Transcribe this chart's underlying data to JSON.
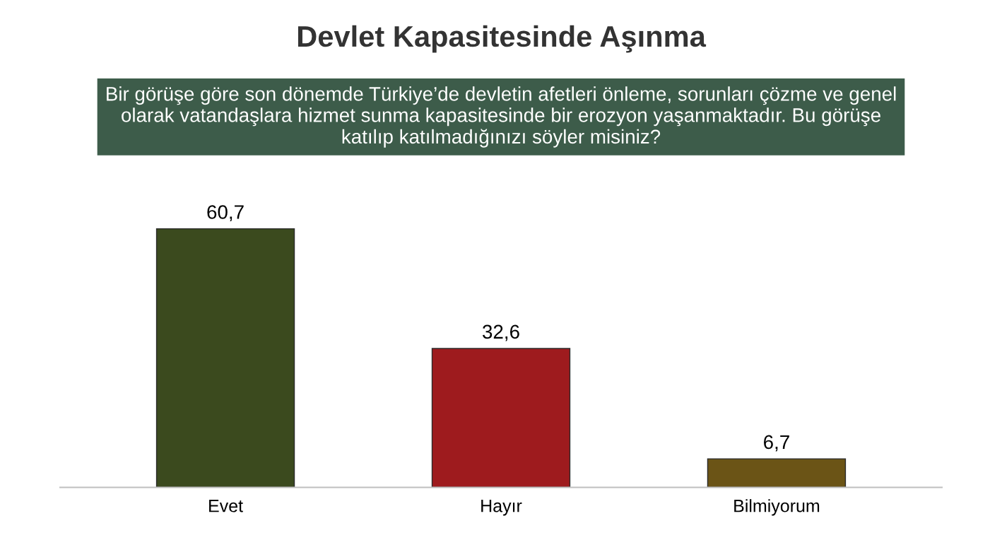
{
  "chart_data": {
    "type": "bar",
    "title": "Devlet Kapasitesinde Aşınma",
    "subtitle": "Bir görüşe göre son dönemde Türkiye’de devletin afetleri önleme, sorunları çözme ve genel\nolarak vatandaşlara hizmet sunma kapasitesinde bir erozyon yaşanmaktadır. Bu görüşe\nkatılıp katılmadığınızı söyler misiniz?",
    "categories": [
      "Evet",
      "Hayır",
      "Bilmiyorum"
    ],
    "values": [
      60.7,
      32.6,
      6.7
    ],
    "colors": [
      "#3b4a1e",
      "#9e1b1e",
      "#6b5416"
    ],
    "value_labels": [
      "60,7",
      "32,6",
      "6,7"
    ],
    "grid": false,
    "legend": false
  }
}
